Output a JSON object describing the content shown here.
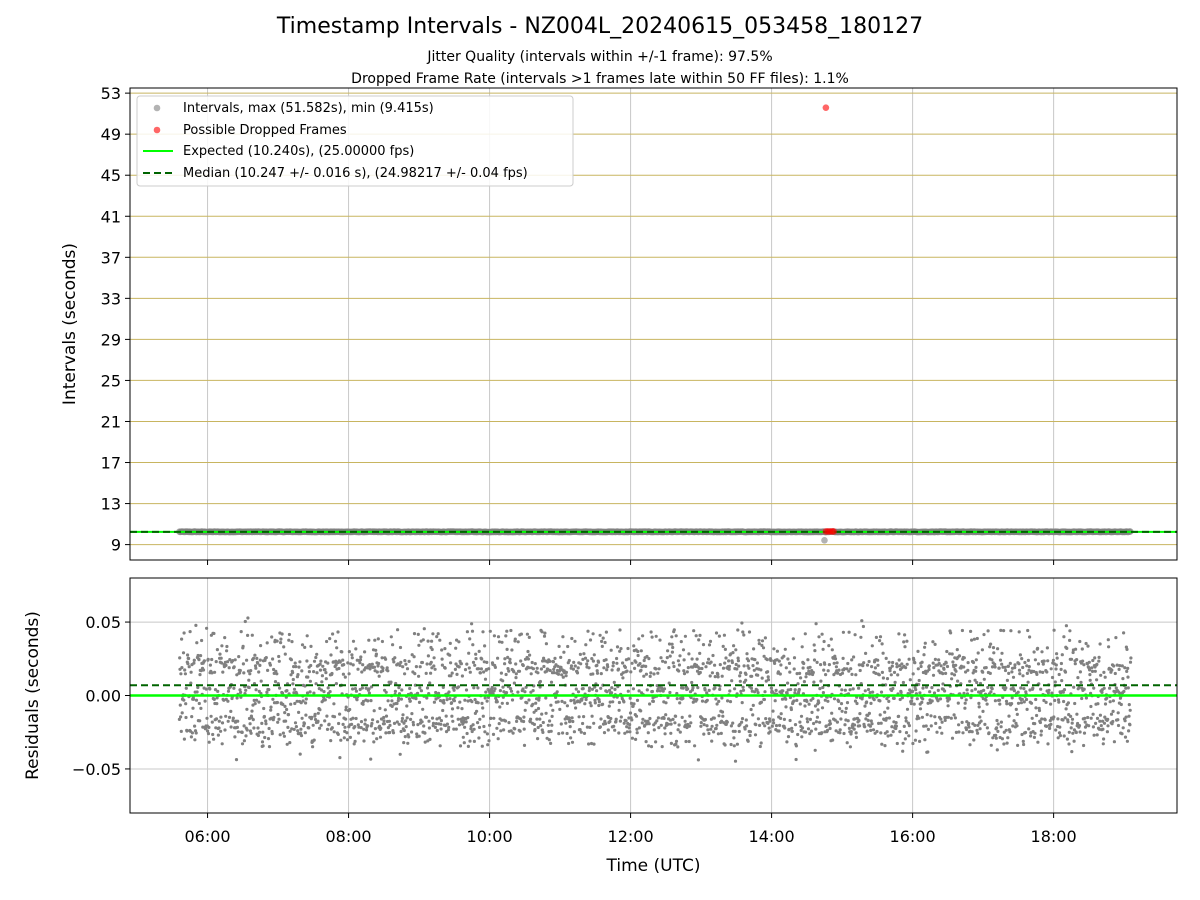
{
  "title": "Timestamp Intervals - NZ004L_20240615_053458_180127",
  "subtitle_jitter": "Jitter Quality (intervals within +/-1 frame): 97.5%",
  "subtitle_dropped": "Dropped Frame Rate (intervals >1 frames late within 50 FF files): 1.1%",
  "colors": {
    "points": "#808080",
    "dropped": "#ff0000",
    "expected": "#00ff00",
    "median": "#006400",
    "hgrid_top": "#c8b560",
    "grid": "#c8c8c8"
  },
  "chart_data": [
    {
      "type": "scatter",
      "name": "intervals",
      "ylabel": "Intervals (seconds)",
      "xlabel": "",
      "xlim_hours": [
        4.9,
        19.75
      ],
      "ylim": [
        7.5,
        53.5
      ],
      "y_ticks": [
        9,
        13,
        17,
        21,
        25,
        29,
        33,
        37,
        41,
        45,
        49,
        53
      ],
      "x_ticks": [
        "06:00",
        "08:00",
        "10:00",
        "12:00",
        "14:00",
        "16:00",
        "18:00"
      ],
      "x_tick_hours": [
        6,
        8,
        10,
        12,
        14,
        16,
        18
      ],
      "grid": true,
      "legend_placement": "top-left",
      "legend": [
        "Intervals, max (51.582s), min (9.415s)",
        "Possible Dropped Frames",
        "Expected (10.240s), (25.00000 fps)",
        "Median (10.247 +/- 0.016 s), (24.98217 +/- 0.04 fps)"
      ],
      "series": [
        {
          "name": "Intervals, max (51.582s), min (9.415s)",
          "x_range_hours": [
            5.6,
            19.1
          ],
          "y_typical": 10.247,
          "outliers": [
            {
              "x_hours": 14.75,
              "y": 9.415
            }
          ]
        },
        {
          "name": "Possible Dropped Frames",
          "points": [
            {
              "x_hours": 14.77,
              "y": 51.582
            },
            {
              "x_hours": 14.77,
              "y": 10.28
            },
            {
              "x_hours": 14.8,
              "y": 10.28
            },
            {
              "x_hours": 14.83,
              "y": 10.28
            },
            {
              "x_hours": 14.86,
              "y": 10.28
            },
            {
              "x_hours": 14.88,
              "y": 10.28
            }
          ]
        }
      ],
      "expected": 10.24,
      "median": 10.247
    },
    {
      "type": "scatter",
      "name": "residuals",
      "ylabel": "Residuals (seconds)",
      "xlabel": "Time (UTC)",
      "xlim_hours": [
        4.9,
        19.75
      ],
      "ylim": [
        -0.08,
        0.08
      ],
      "y_ticks": [
        0.05,
        0.0,
        -0.05
      ],
      "y_tick_labels": [
        "0.05",
        "0.00",
        "−0.05"
      ],
      "x_ticks": [
        "06:00",
        "08:00",
        "10:00",
        "12:00",
        "14:00",
        "16:00",
        "18:00"
      ],
      "x_tick_hours": [
        6,
        8,
        10,
        12,
        14,
        16,
        18
      ],
      "grid": true,
      "expected_residual": 0.0,
      "median_residual": 0.007,
      "residual_bands": [
        0.02,
        0.0,
        -0.02
      ],
      "residual_spread": [
        -0.045,
        0.055
      ],
      "x_range_hours": [
        5.6,
        19.1
      ]
    }
  ]
}
